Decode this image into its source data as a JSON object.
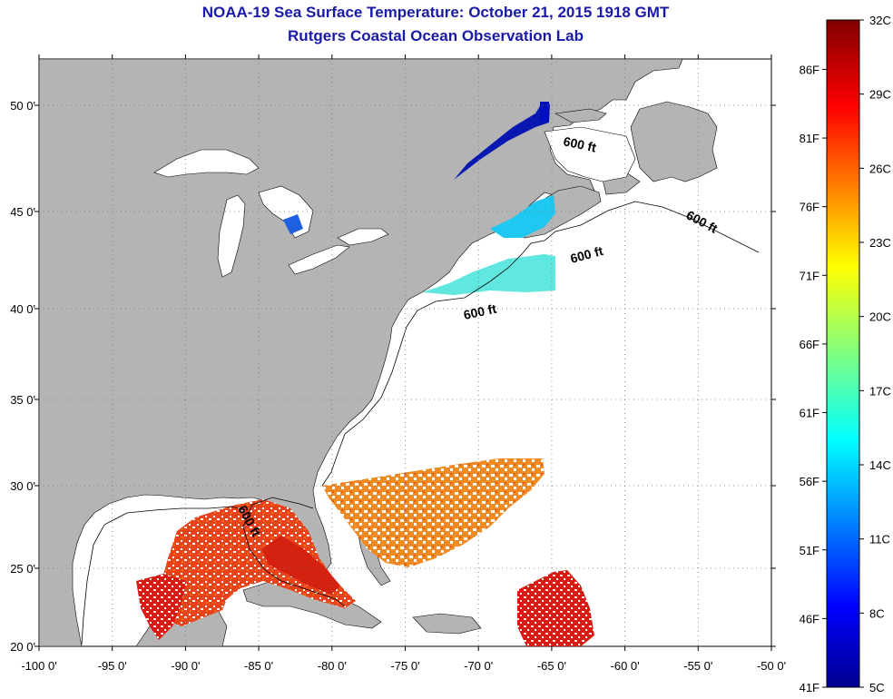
{
  "title": "NOAA-19 Sea Surface Temperature:  October 21, 2015 1918 GMT",
  "subtitle": "Rutgers Coastal Ocean Observation Lab",
  "map": {
    "lon_ticks": [
      "-100 0'",
      "-95 0'",
      "-90 0'",
      "-85 0'",
      "-80 0'",
      "-75 0'",
      "-70 0'",
      "-65 0'",
      "-60 0'",
      "-55 0'",
      "-50 0'"
    ],
    "lat_ticks": [
      "50 0'",
      "45 0'",
      "40 0'",
      "35 0'",
      "30 0'",
      "25 0'",
      "20 0'"
    ],
    "depth_labels": [
      "600 ft",
      "600 ft",
      "600 ft",
      "600 ft",
      "600 ft"
    ],
    "colors": {
      "land": "#b4b4b4",
      "ocean": "#ffffff",
      "grid": "#777777"
    }
  },
  "colorbar": {
    "celsius": [
      "32C",
      "29C",
      "26C",
      "23C",
      "20C",
      "17C",
      "14C",
      "11C",
      "8C",
      "5C"
    ],
    "fahrenheit": [
      "86F",
      "81F",
      "76F",
      "71F",
      "66F",
      "61F",
      "56F",
      "51F",
      "46F",
      "41F"
    ]
  }
}
